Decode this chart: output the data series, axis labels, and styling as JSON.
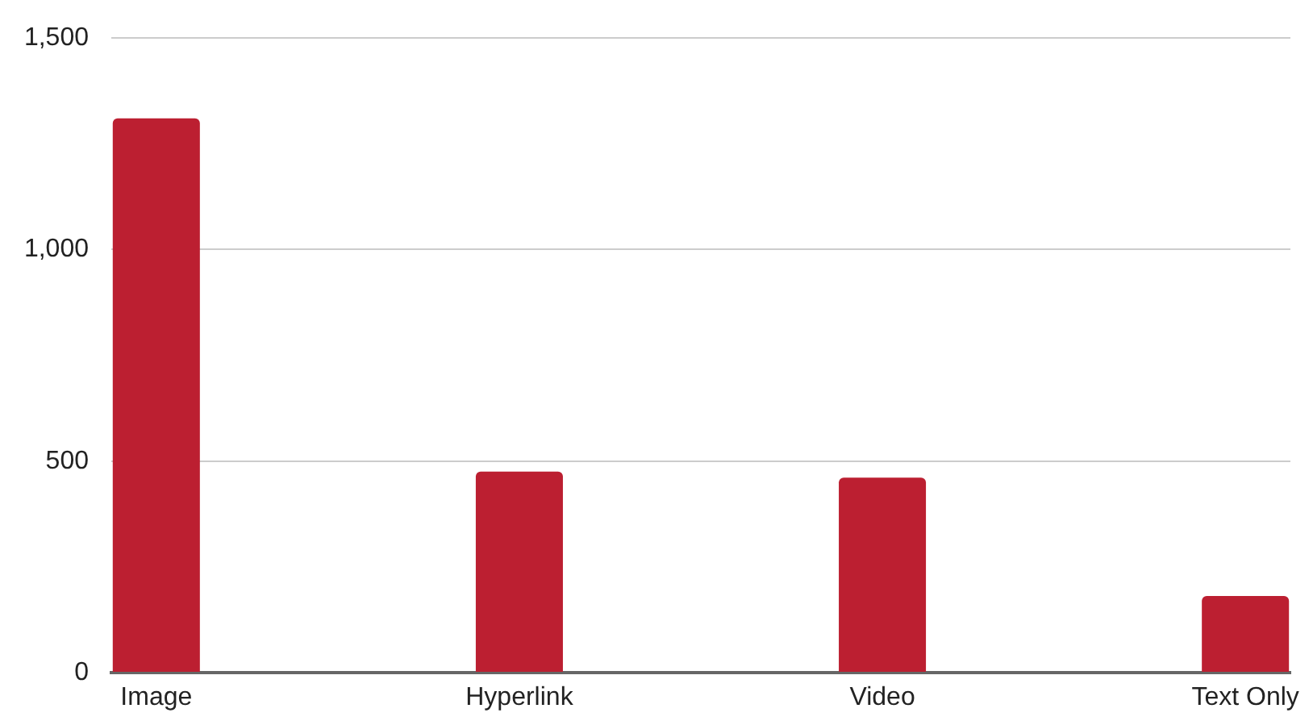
{
  "chart_data": {
    "type": "bar",
    "categories": [
      "Image",
      "Hyperlink",
      "Video",
      "Text Only"
    ],
    "values": [
      1310,
      475,
      461,
      181
    ],
    "color": "#bc1f31",
    "ylim": [
      0,
      1500
    ],
    "yticks": [
      0,
      500,
      {
        "value": 1000,
        "label": "1,000"
      },
      {
        "value": 1500,
        "label": "1,500"
      }
    ],
    "grid": "y",
    "legend": false
  }
}
